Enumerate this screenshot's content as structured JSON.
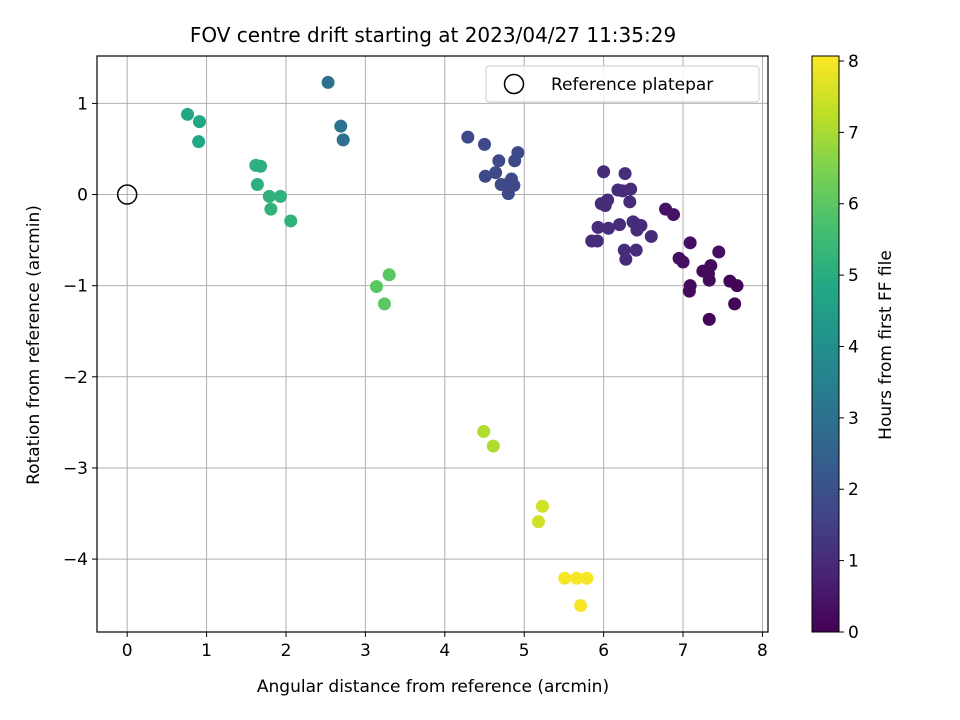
{
  "chart_data": {
    "type": "scatter",
    "title": "FOV centre drift starting at 2023/04/27 11:35:29",
    "xlabel": "Angular distance from reference (arcmin)",
    "ylabel": "Rotation from reference (arcmin)",
    "xlim": [
      -0.38,
      8.07
    ],
    "ylim": [
      -4.8,
      1.52
    ],
    "x_ticks": [
      0,
      1,
      2,
      3,
      4,
      5,
      6,
      7,
      8
    ],
    "y_ticks": [
      1,
      0,
      -1,
      -2,
      -3,
      -4
    ],
    "grid": true,
    "legend": {
      "placement": "top-right",
      "entries": [
        "Reference platepar"
      ]
    },
    "reference_point": {
      "x": 0,
      "y": 0,
      "label": "Reference platepar"
    },
    "colorbar": {
      "label": "Hours from first FF file",
      "range": [
        0,
        8.07
      ],
      "ticks": [
        0,
        1,
        2,
        3,
        4,
        5,
        6,
        7,
        8
      ],
      "colormap": "viridis"
    },
    "points": [
      {
        "x": 0.76,
        "y": 0.88,
        "h": 4.8
      },
      {
        "x": 0.91,
        "y": 0.8,
        "h": 4.8
      },
      {
        "x": 0.9,
        "y": 0.58,
        "h": 4.8
      },
      {
        "x": 2.53,
        "y": 1.23,
        "h": 3.0
      },
      {
        "x": 2.69,
        "y": 0.75,
        "h": 3.0
      },
      {
        "x": 2.72,
        "y": 0.6,
        "h": 3.0
      },
      {
        "x": 1.62,
        "y": 0.32,
        "h": 5.1
      },
      {
        "x": 1.68,
        "y": 0.31,
        "h": 5.1
      },
      {
        "x": 1.64,
        "y": 0.11,
        "h": 5.1
      },
      {
        "x": 1.79,
        "y": -0.02,
        "h": 5.2
      },
      {
        "x": 1.93,
        "y": -0.02,
        "h": 5.2
      },
      {
        "x": 1.81,
        "y": -0.16,
        "h": 5.2
      },
      {
        "x": 2.06,
        "y": -0.29,
        "h": 5.2
      },
      {
        "x": 3.14,
        "y": -1.01,
        "h": 6.0
      },
      {
        "x": 3.3,
        "y": -0.88,
        "h": 6.0
      },
      {
        "x": 3.24,
        "y": -1.2,
        "h": 6.0
      },
      {
        "x": 4.49,
        "y": -2.6,
        "h": 7.1
      },
      {
        "x": 4.61,
        "y": -2.76,
        "h": 7.1
      },
      {
        "x": 5.23,
        "y": -3.42,
        "h": 7.5
      },
      {
        "x": 5.18,
        "y": -3.59,
        "h": 7.5
      },
      {
        "x": 5.51,
        "y": -4.21,
        "h": 8.0
      },
      {
        "x": 5.66,
        "y": -4.21,
        "h": 8.0
      },
      {
        "x": 5.79,
        "y": -4.21,
        "h": 8.0
      },
      {
        "x": 5.71,
        "y": -4.51,
        "h": 8.0
      },
      {
        "x": 4.29,
        "y": 0.63,
        "h": 1.8
      },
      {
        "x": 4.5,
        "y": 0.55,
        "h": 1.8
      },
      {
        "x": 4.68,
        "y": 0.37,
        "h": 1.8
      },
      {
        "x": 4.64,
        "y": 0.24,
        "h": 1.8
      },
      {
        "x": 4.51,
        "y": 0.2,
        "h": 1.8
      },
      {
        "x": 4.71,
        "y": 0.11,
        "h": 1.8
      },
      {
        "x": 4.78,
        "y": 0.11,
        "h": 1.8
      },
      {
        "x": 4.84,
        "y": 0.17,
        "h": 1.8
      },
      {
        "x": 4.87,
        "y": 0.1,
        "h": 1.8
      },
      {
        "x": 4.8,
        "y": 0.01,
        "h": 1.8
      },
      {
        "x": 4.88,
        "y": 0.37,
        "h": 1.8
      },
      {
        "x": 4.92,
        "y": 0.46,
        "h": 1.8
      },
      {
        "x": 6.0,
        "y": 0.25,
        "h": 1.0
      },
      {
        "x": 6.27,
        "y": 0.23,
        "h": 1.0
      },
      {
        "x": 6.18,
        "y": 0.05,
        "h": 1.0
      },
      {
        "x": 6.24,
        "y": 0.04,
        "h": 1.0
      },
      {
        "x": 6.34,
        "y": 0.06,
        "h": 1.0
      },
      {
        "x": 6.05,
        "y": -0.06,
        "h": 1.0
      },
      {
        "x": 5.97,
        "y": -0.1,
        "h": 1.0
      },
      {
        "x": 6.02,
        "y": -0.12,
        "h": 1.0
      },
      {
        "x": 6.33,
        "y": -0.08,
        "h": 1.0
      },
      {
        "x": 6.37,
        "y": -0.3,
        "h": 1.0
      },
      {
        "x": 6.4,
        "y": -0.32,
        "h": 1.0
      },
      {
        "x": 6.47,
        "y": -0.34,
        "h": 1.0
      },
      {
        "x": 6.42,
        "y": -0.39,
        "h": 1.0
      },
      {
        "x": 6.2,
        "y": -0.33,
        "h": 1.0
      },
      {
        "x": 5.93,
        "y": -0.36,
        "h": 1.0
      },
      {
        "x": 6.06,
        "y": -0.37,
        "h": 1.0
      },
      {
        "x": 5.85,
        "y": -0.51,
        "h": 1.0
      },
      {
        "x": 5.92,
        "y": -0.51,
        "h": 1.0
      },
      {
        "x": 6.6,
        "y": -0.46,
        "h": 1.0
      },
      {
        "x": 6.26,
        "y": -0.61,
        "h": 1.0
      },
      {
        "x": 6.41,
        "y": -0.61,
        "h": 1.0
      },
      {
        "x": 6.28,
        "y": -0.71,
        "h": 1.0
      },
      {
        "x": 6.78,
        "y": -0.16,
        "h": 0.4
      },
      {
        "x": 6.88,
        "y": -0.22,
        "h": 0.4
      },
      {
        "x": 7.09,
        "y": -0.53,
        "h": 0.3
      },
      {
        "x": 6.95,
        "y": -0.7,
        "h": 0.3
      },
      {
        "x": 7.0,
        "y": -0.74,
        "h": 0.3
      },
      {
        "x": 7.45,
        "y": -0.63,
        "h": 0.3
      },
      {
        "x": 7.35,
        "y": -0.78,
        "h": 0.2
      },
      {
        "x": 7.25,
        "y": -0.84,
        "h": 0.2
      },
      {
        "x": 7.32,
        "y": -0.87,
        "h": 0.2
      },
      {
        "x": 7.33,
        "y": -0.94,
        "h": 0.2
      },
      {
        "x": 7.59,
        "y": -0.95,
        "h": 0.1
      },
      {
        "x": 7.68,
        "y": -1.0,
        "h": 0.1
      },
      {
        "x": 7.09,
        "y": -1.0,
        "h": 0.2
      },
      {
        "x": 7.08,
        "y": -1.06,
        "h": 0.2
      },
      {
        "x": 7.65,
        "y": -1.2,
        "h": 0.1
      },
      {
        "x": 7.33,
        "y": -1.37,
        "h": 0.1
      }
    ]
  },
  "colors": {
    "grid": "#b0b0b0",
    "axes": "#000000",
    "reference_marker_stroke": "#000000"
  }
}
